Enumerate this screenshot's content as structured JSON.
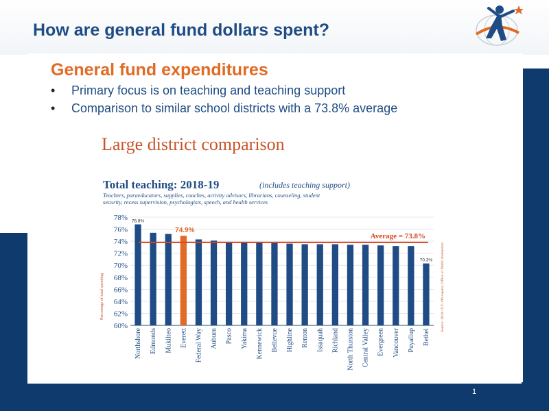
{
  "slide": {
    "title": "How are general fund dollars spent?",
    "subhead": "General fund expenditures",
    "bullets": [
      "Primary focus is on teaching and teaching support",
      "Comparison to similar school districts with a 73.8% average"
    ],
    "chart_heading": "Large district comparison",
    "page_number": "1"
  },
  "colors": {
    "title": "#1f4c84",
    "accent": "#e06b25",
    "bar": "#1f4c84",
    "highlight_bar": "#e06b25",
    "band": "#0f3a6e"
  },
  "chart_data": {
    "type": "bar",
    "title": "Total teaching:  2018-19",
    "title_note": "(includes teaching support)",
    "subtitle": "Teachers, paraeducators, supplies, coaches, activity advisors, librarians, counseling, student security, recess supervision, psychologists, speech, and health services",
    "ylabel": "Percentage of total spending",
    "source": "Source: 2018-19 F-196 reports, Office of Public Instruction",
    "categories": [
      "Northshore",
      "Edmonds",
      "Mukilteo",
      "Everett",
      "Federal Way",
      "Auburn",
      "Pasco",
      "Yakima",
      "Kennewick",
      "Bellevue",
      "Highline",
      "Renton",
      "Issaquah",
      "Richland",
      "North Thurston",
      "Central Valley",
      "Evergreen",
      "Vancouver",
      "Puyallup",
      "Bethel"
    ],
    "values": [
      76.8,
      75.4,
      75.2,
      74.9,
      74.3,
      74.1,
      73.8,
      73.8,
      73.8,
      73.7,
      73.6,
      73.5,
      73.5,
      73.5,
      73.4,
      73.4,
      73.3,
      73.2,
      73.2,
      70.3
    ],
    "highlight_category": "Everett",
    "data_labels": {
      "Northshore": "76.8%",
      "Everett": "74.9%",
      "Bethel": "70.3%"
    },
    "average": 73.8,
    "average_label": "Average = 73.8%",
    "yticks": [
      "60%",
      "62%",
      "64%",
      "66%",
      "68%",
      "70%",
      "72%",
      "74%",
      "76%",
      "78%"
    ],
    "ylim": [
      60,
      78
    ],
    "grid": true,
    "legend": "none"
  }
}
